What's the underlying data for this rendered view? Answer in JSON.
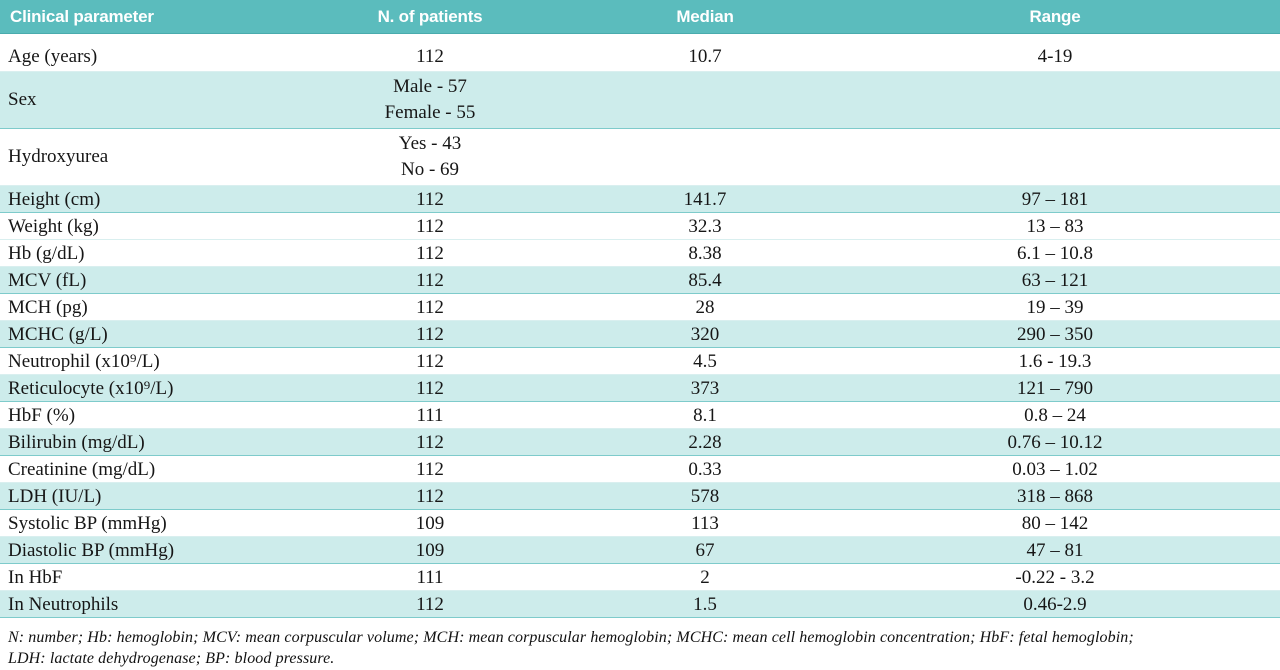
{
  "colors": {
    "header_bg": "#5bbcbd",
    "header_text": "#ffffff",
    "stripe_bg": "#cdeceb",
    "border_light": "#d9efef",
    "border_dark": "#7ecbcb",
    "body_text": "#161616"
  },
  "table": {
    "columns": [
      {
        "label": "Clinical parameter",
        "align": "left"
      },
      {
        "label": "N. of patients",
        "align": "center"
      },
      {
        "label": "Median",
        "align": "center"
      },
      {
        "label": "Range",
        "align": "center"
      }
    ],
    "rows": [
      {
        "parameter": "Age (years)",
        "n_patients": [
          "112"
        ],
        "median": "10.7",
        "range": "4-19",
        "shaded": false,
        "first": true
      },
      {
        "parameter": "Sex",
        "n_patients": [
          "Male - 57",
          "Female - 55"
        ],
        "median": "",
        "range": "",
        "shaded": true
      },
      {
        "parameter": "Hydroxyurea",
        "n_patients": [
          "Yes - 43",
          "No - 69"
        ],
        "median": "",
        "range": "",
        "shaded": false
      },
      {
        "parameter": "Height (cm)",
        "n_patients": [
          "112"
        ],
        "median": "141.7",
        "range": "97 – 181",
        "shaded": true
      },
      {
        "parameter": "Weight (kg)",
        "n_patients": [
          "112"
        ],
        "median": "32.3",
        "range": "13 – 83",
        "shaded": false
      },
      {
        "parameter": "Hb (g/dL)",
        "n_patients": [
          "112"
        ],
        "median": "8.38",
        "range": "6.1 – 10.8",
        "shaded": false
      },
      {
        "parameter": "MCV (fL)",
        "n_patients": [
          "112"
        ],
        "median": "85.4",
        "range": "63 – 121",
        "shaded": true
      },
      {
        "parameter": "MCH (pg)",
        "n_patients": [
          "112"
        ],
        "median": "28",
        "range": "19 – 39",
        "shaded": false
      },
      {
        "parameter": "MCHC (g/L)",
        "n_patients": [
          "112"
        ],
        "median": "320",
        "range": "290 – 350",
        "shaded": true
      },
      {
        "parameter": "Neutrophil (x10⁹/L)",
        "n_patients": [
          "112"
        ],
        "median": "4.5",
        "range": "1.6 - 19.3",
        "shaded": false
      },
      {
        "parameter": "Reticulocyte (x10⁹/L)",
        "n_patients": [
          "112"
        ],
        "median": "373",
        "range": "121 – 790",
        "shaded": true
      },
      {
        "parameter": "HbF (%)",
        "n_patients": [
          "111"
        ],
        "median": "8.1",
        "range": "0.8 – 24",
        "shaded": false
      },
      {
        "parameter": "Bilirubin (mg/dL)",
        "n_patients": [
          "112"
        ],
        "median": "2.28",
        "range": "0.76 – 10.12",
        "shaded": true
      },
      {
        "parameter": "Creatinine (mg/dL)",
        "n_patients": [
          "112"
        ],
        "median": "0.33",
        "range": "0.03 – 1.02",
        "shaded": false
      },
      {
        "parameter": "LDH (IU/L)",
        "n_patients": [
          "112"
        ],
        "median": "578",
        "range": "318 – 868",
        "shaded": true
      },
      {
        "parameter": "Systolic BP (mmHg)",
        "n_patients": [
          "109"
        ],
        "median": "113",
        "range": "80 – 142",
        "shaded": false
      },
      {
        "parameter": "Diastolic BP (mmHg)",
        "n_patients": [
          "109"
        ],
        "median": "67",
        "range": "47 – 81",
        "shaded": true
      },
      {
        "parameter": "In HbF",
        "n_patients": [
          "111"
        ],
        "median": "2",
        "range": "-0.22 - 3.2",
        "shaded": false
      },
      {
        "parameter": "In Neutrophils",
        "n_patients": [
          "112"
        ],
        "median": "1.5",
        "range": "0.46-2.9",
        "shaded": true
      }
    ]
  },
  "footnote": {
    "lines": [
      "N: number; Hb: hemoglobin; MCV: mean corpuscular volume; MCH: mean corpuscular hemoglobin; MCHC: mean cell hemoglobin concentration; HbF: fetal hemoglobin;",
      "LDH: lactate dehydrogenase; BP: blood pressure."
    ]
  }
}
